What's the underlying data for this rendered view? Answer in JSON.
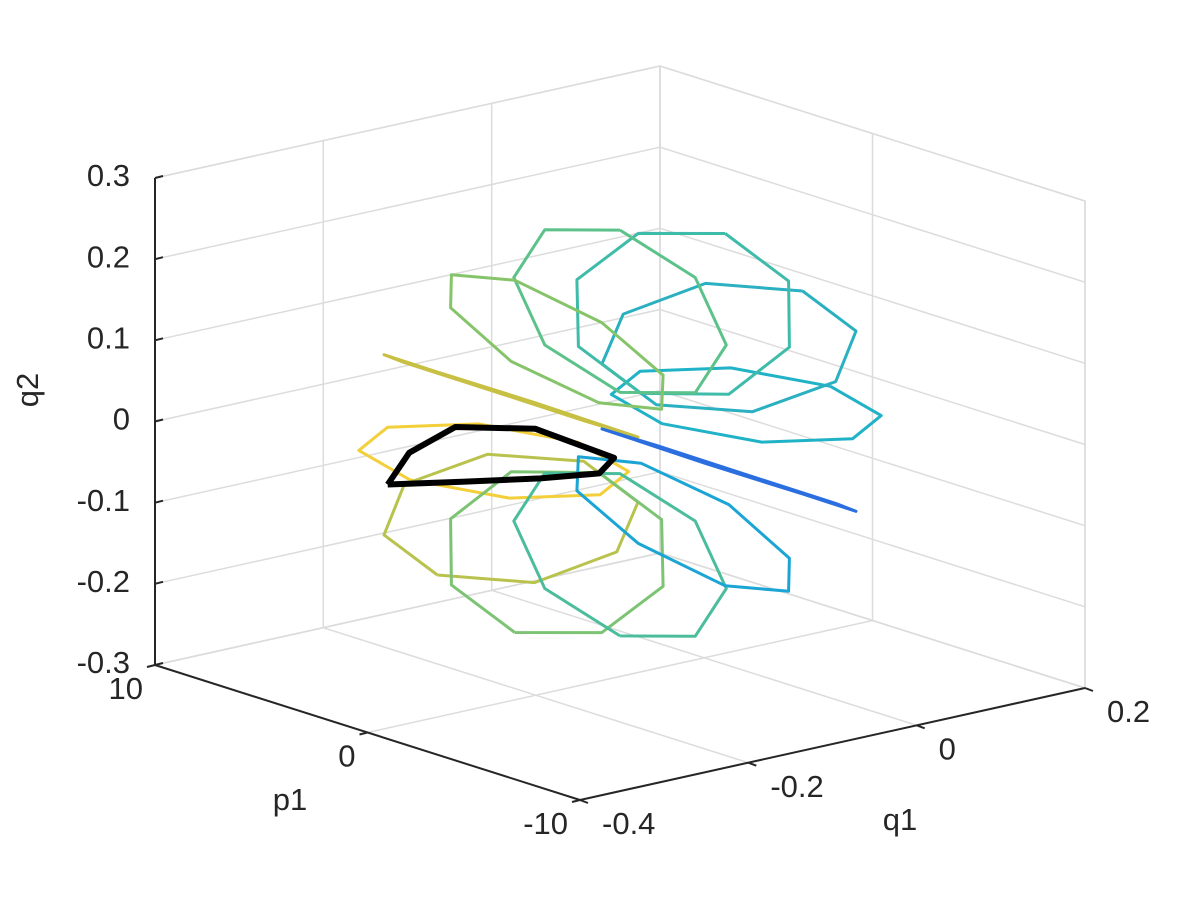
{
  "chart_data": {
    "type": "line3d",
    "xlabel": "q1",
    "ylabel": "p1",
    "zlabel": "q2",
    "xlim": [
      -0.4,
      0.2
    ],
    "xticks": [
      -0.4,
      -0.2,
      0,
      0.2
    ],
    "ylim": [
      -10,
      10
    ],
    "yticks": [
      -10,
      0,
      10
    ],
    "zlim": [
      -0.3,
      0.3
    ],
    "zticks": [
      -0.3,
      -0.2,
      -0.1,
      0,
      0.1,
      0.2,
      0.3
    ],
    "grid": true,
    "series": [
      {
        "color": "#20b2c7",
        "x": [
          0.15,
          0.121,
          0.05,
          -0.021,
          -0.05,
          -0.021,
          0.05,
          0.121,
          0.15
        ],
        "y": [
          0,
          3.54,
          5,
          3.54,
          0,
          -3.54,
          -5,
          -3.54,
          0
        ],
        "z": [
          0,
          0,
          0,
          0,
          0,
          0,
          0,
          0,
          0
        ]
      },
      {
        "color": "#2ab0c0",
        "x": [
          0.117,
          0.091,
          0.03,
          -0.032,
          -0.057,
          -0.032,
          0.03,
          0.091,
          0.117
        ],
        "y": [
          0,
          3.54,
          5,
          3.54,
          0,
          -3.54,
          -5,
          -3.54,
          0
        ],
        "z": [
          0.125,
          0.111,
          0.075,
          0.04,
          0.025,
          0.04,
          0.075,
          0.111,
          0.125
        ]
      },
      {
        "color": "#3fbbaa",
        "x": [
          0.025,
          0.011,
          -0.025,
          -0.06,
          -0.075,
          -0.06,
          -0.025,
          0.011,
          0.025
        ],
        "y": [
          0,
          3.54,
          5,
          3.54,
          0,
          -3.54,
          -5,
          -3.54,
          0
        ],
        "z": [
          0.217,
          0.191,
          0.13,
          0.068,
          0.043,
          0.068,
          0.13,
          0.191,
          0.217
        ]
      },
      {
        "color": "#5cc28a",
        "x": [
          -0.1,
          -0.1,
          -0.1,
          -0.1,
          -0.1,
          -0.1,
          -0.1,
          -0.1,
          -0.1
        ],
        "y": [
          0,
          3.54,
          5,
          3.54,
          0,
          -3.54,
          -5,
          -3.54,
          0
        ],
        "z": [
          0.25,
          0.221,
          0.15,
          0.079,
          0.05,
          0.079,
          0.15,
          0.221,
          0.25
        ]
      },
      {
        "color": "#86c46a",
        "x": [
          -0.225,
          -0.211,
          -0.175,
          -0.14,
          -0.125,
          -0.14,
          -0.175,
          -0.211,
          -0.225
        ],
        "y": [
          0,
          3.54,
          5,
          3.54,
          0,
          -3.54,
          -5,
          -3.54,
          0
        ],
        "z": [
          0.217,
          0.191,
          0.13,
          0.068,
          0.043,
          0.068,
          0.13,
          0.191,
          0.217
        ]
      },
      {
        "color": "#c7c043",
        "x": [
          -0.317,
          -0.291,
          -0.23,
          -0.168,
          -0.143,
          -0.168,
          -0.23,
          -0.291,
          -0.317
        ],
        "y": [
          0,
          3.54,
          5,
          3.54,
          0,
          -3.54,
          -5,
          -3.54,
          0
        ],
        "z": [
          0.125,
          0.111,
          0.075,
          0.04,
          0.025,
          0.04,
          0.075,
          0.111,
          0.125
        ]
      },
      {
        "color": "#f3cf3a",
        "x": [
          -0.35,
          -0.321,
          -0.25,
          -0.179,
          -0.15,
          -0.179,
          -0.25,
          -0.321,
          -0.35
        ],
        "y": [
          0,
          3.54,
          5,
          3.54,
          0,
          -3.54,
          -5,
          -3.54,
          0
        ],
        "z": [
          0,
          0,
          0,
          0,
          0,
          0,
          0,
          0,
          0
        ]
      },
      {
        "color": "#b9c24d",
        "x": [
          -0.317,
          -0.291,
          -0.23,
          -0.168,
          -0.143,
          -0.168,
          -0.23,
          -0.291,
          -0.317
        ],
        "y": [
          0,
          3.54,
          5,
          3.54,
          0,
          -3.54,
          -5,
          -3.54,
          0
        ],
        "z": [
          -0.125,
          -0.111,
          -0.075,
          -0.04,
          -0.025,
          -0.04,
          -0.075,
          -0.111,
          -0.125
        ]
      },
      {
        "color": "#7cc474",
        "x": [
          -0.225,
          -0.211,
          -0.175,
          -0.14,
          -0.125,
          -0.14,
          -0.175,
          -0.211,
          -0.225
        ],
        "y": [
          0,
          3.54,
          5,
          3.54,
          0,
          -3.54,
          -5,
          -3.54,
          0
        ],
        "z": [
          -0.217,
          -0.191,
          -0.13,
          -0.068,
          -0.043,
          -0.068,
          -0.13,
          -0.191,
          -0.217
        ]
      },
      {
        "color": "#4bbd9c",
        "x": [
          -0.1,
          -0.1,
          -0.1,
          -0.1,
          -0.1,
          -0.1,
          -0.1,
          -0.1,
          -0.1
        ],
        "y": [
          0,
          3.54,
          5,
          3.54,
          0,
          -3.54,
          -5,
          -3.54,
          0
        ],
        "z": [
          -0.25,
          -0.221,
          -0.15,
          -0.079,
          -0.05,
          -0.079,
          -0.15,
          -0.221,
          -0.25
        ]
      },
      {
        "color": "#1aa5d4",
        "x": [
          0.025,
          0.011,
          -0.025,
          -0.06,
          -0.075,
          -0.06,
          -0.025,
          0.011,
          0.025
        ],
        "y": [
          0,
          3.54,
          5,
          3.54,
          0,
          -3.54,
          -5,
          -3.54,
          0
        ],
        "z": [
          -0.217,
          -0.191,
          -0.13,
          -0.068,
          -0.043,
          -0.068,
          -0.13,
          -0.191,
          -0.217
        ]
      },
      {
        "color": "#2a6ee0",
        "x": [
          0.117,
          0.091,
          0.03,
          -0.032,
          -0.057,
          -0.032,
          0.03,
          0.091,
          0.117
        ],
        "y": [
          0,
          3.54,
          5,
          3.54,
          0,
          -3.54,
          -5,
          -3.54,
          0
        ],
        "z": [
          -0.125,
          -0.111,
          -0.075,
          -0.04,
          -0.025,
          -0.04,
          -0.075,
          -0.111,
          -0.125
        ]
      },
      {
        "color": "#000000",
        "x": [
          -0.376,
          -0.3,
          -0.22,
          -0.15,
          -0.107,
          -0.15,
          -0.22,
          -0.3,
          -0.376
        ],
        "y": [
          0,
          2,
          3,
          2,
          0,
          -1,
          -1,
          -0.5,
          0
        ],
        "z": [
          0,
          0.005,
          0.01,
          0,
          -0.029,
          -0.03,
          -0.02,
          -0.01,
          0
        ]
      }
    ]
  }
}
